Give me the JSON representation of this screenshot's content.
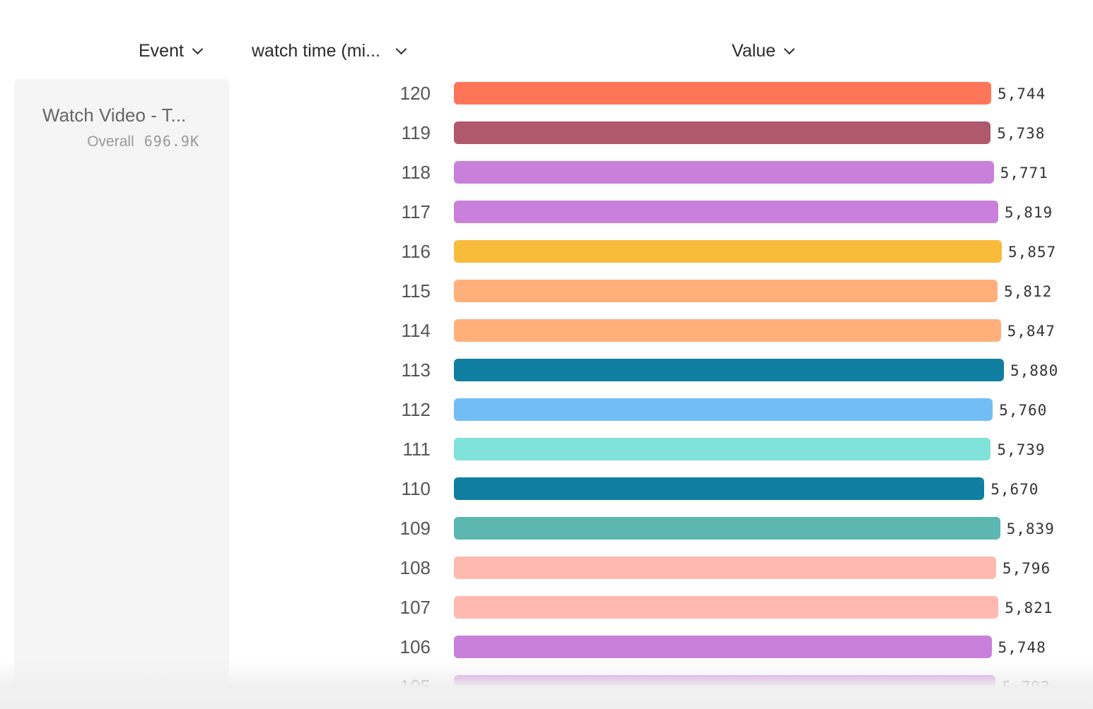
{
  "headers": {
    "event": "Event",
    "breakdown": "watch time (mi...",
    "value": "Value"
  },
  "event_panel": {
    "name": "Watch Video - T...",
    "overall_label": "Overall",
    "overall_value": "696.9K"
  },
  "chart_data": {
    "type": "bar",
    "orientation": "horizontal",
    "categories": [
      "120",
      "119",
      "118",
      "117",
      "116",
      "115",
      "114",
      "113",
      "112",
      "111",
      "110",
      "109",
      "108",
      "107",
      "106",
      "105"
    ],
    "values": [
      5744,
      5738,
      5771,
      5819,
      5857,
      5812,
      5847,
      5880,
      5760,
      5739,
      5670,
      5839,
      5796,
      5821,
      5748,
      5793
    ],
    "value_labels": [
      "5,744",
      "5,738",
      "5,771",
      "5,819",
      "5,857",
      "5,812",
      "5,847",
      "5,880",
      "5,760",
      "5,739",
      "5,670",
      "5,839",
      "5,796",
      "5,821",
      "5,748",
      "5,793"
    ],
    "colors": [
      "#ff7557",
      "#b0586c",
      "#c980db",
      "#c980db",
      "#f8bb3c",
      "#ffb07a",
      "#ffb07a",
      "#0f7ea0",
      "#72bef4",
      "#80e1d9",
      "#0f7ea0",
      "#5bb7af",
      "#ffb9b0",
      "#ffb9b0",
      "#c980db",
      "#c980db"
    ],
    "xlim": [
      0,
      5880
    ],
    "grid": false
  }
}
